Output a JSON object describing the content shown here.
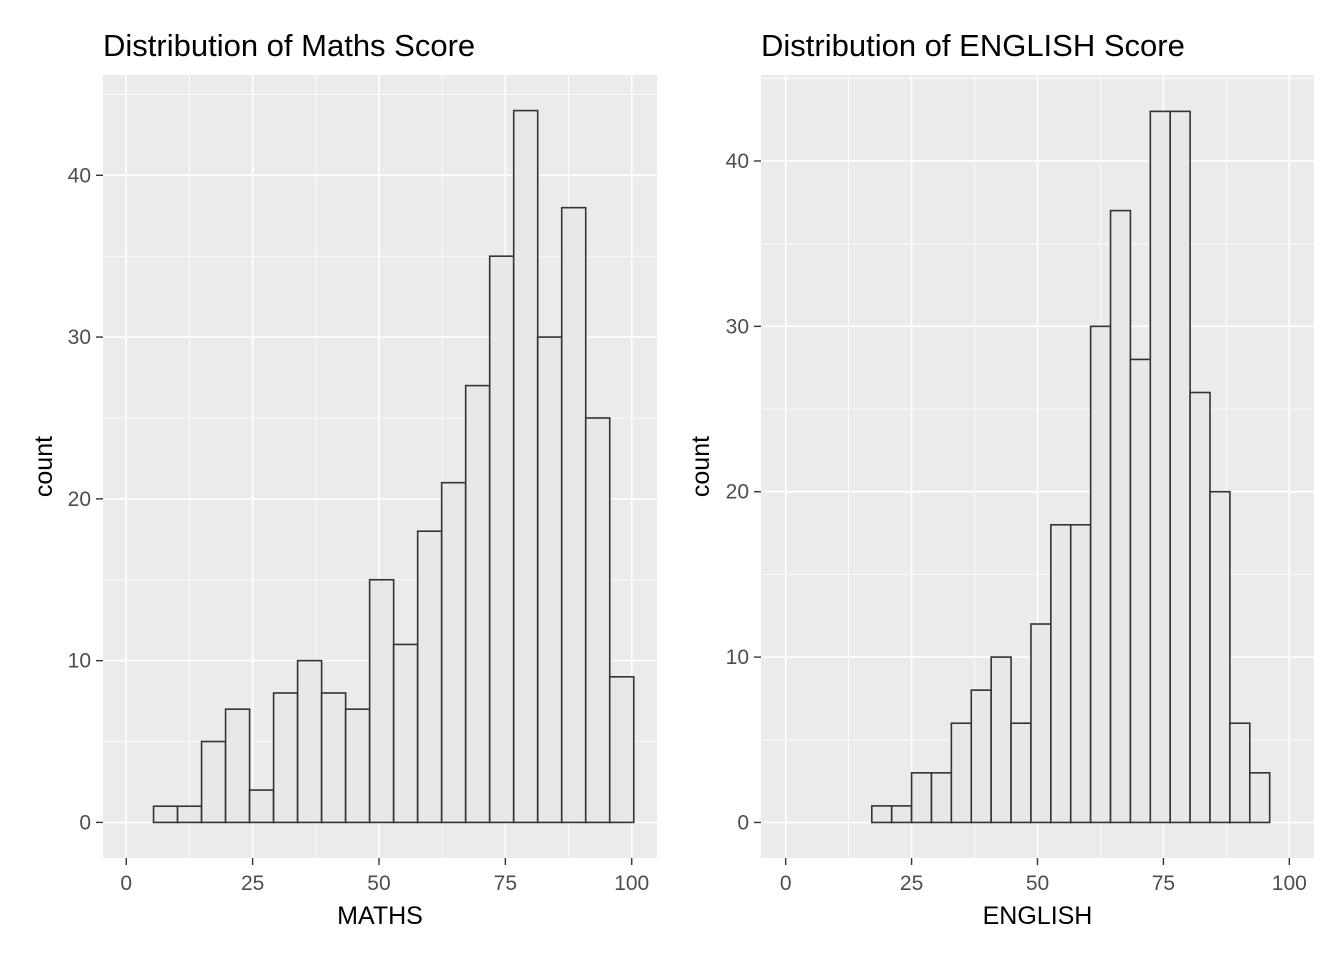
{
  "chart_data": [
    {
      "type": "bar",
      "subtype": "histogram",
      "title": "Distribution of Maths Score",
      "xlabel": "MATHS",
      "ylabel": "count",
      "xlim": [
        0,
        100
      ],
      "ylim": [
        0,
        45
      ],
      "x_ticks": [
        0,
        25,
        50,
        75,
        100
      ],
      "y_ticks": [
        0,
        10,
        20,
        30,
        40
      ],
      "grid": true,
      "bin_width": 4.75,
      "bin_start": 5.4,
      "values": [
        1,
        1,
        5,
        7,
        2,
        8,
        10,
        8,
        7,
        15,
        11,
        18,
        21,
        27,
        35,
        44,
        30,
        38,
        25,
        9
      ]
    },
    {
      "type": "bar",
      "subtype": "histogram",
      "title": "Distribution of ENGLISH Score",
      "xlabel": "ENGLISH",
      "ylabel": "count",
      "xlim": [
        0,
        100
      ],
      "ylim": [
        0,
        43
      ],
      "x_ticks": [
        0,
        25,
        50,
        75,
        100
      ],
      "y_ticks": [
        0,
        10,
        20,
        30,
        40
      ],
      "grid": true,
      "bin_width": 3.95,
      "bin_start": 17.1,
      "values": [
        1,
        1,
        3,
        3,
        6,
        8,
        10,
        6,
        12,
        18,
        18,
        30,
        37,
        28,
        43,
        43,
        26,
        20,
        6,
        3
      ]
    }
  ]
}
